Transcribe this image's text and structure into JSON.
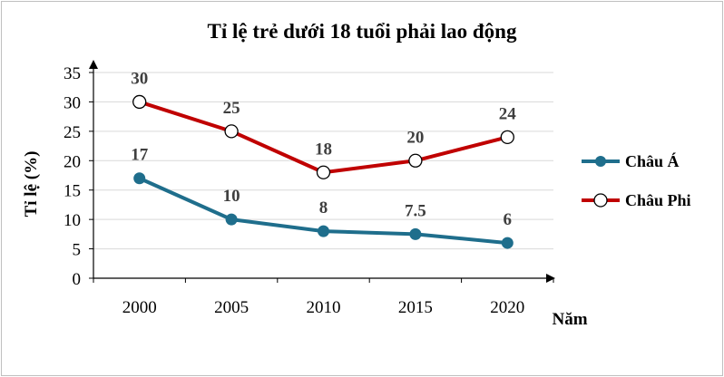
{
  "chart_data": {
    "type": "line",
    "title": "Tỉ lệ trẻ dưới 18 tuổi phải lao động",
    "xlabel": "Năm",
    "ylabel": "Tỉ lệ (%)",
    "categories": [
      "2000",
      "2005",
      "2010",
      "2015",
      "2020"
    ],
    "ylim": [
      0,
      35
    ],
    "yticks": [
      "0",
      "5",
      "10",
      "15",
      "20",
      "25",
      "30",
      "35"
    ],
    "grid": true,
    "legend_position": "right",
    "series": [
      {
        "name": "Châu Á",
        "values": [
          17,
          10,
          8,
          7.5,
          6
        ],
        "labels": [
          "17",
          "10",
          "8",
          "7.5",
          "6"
        ],
        "color": "#1f6e8c",
        "marker": "filled-circle"
      },
      {
        "name": "Châu Phi",
        "values": [
          30,
          25,
          18,
          20,
          24
        ],
        "labels": [
          "30",
          "25",
          "18",
          "20",
          "24"
        ],
        "color": "#c00000",
        "marker": "open-circle"
      }
    ]
  }
}
